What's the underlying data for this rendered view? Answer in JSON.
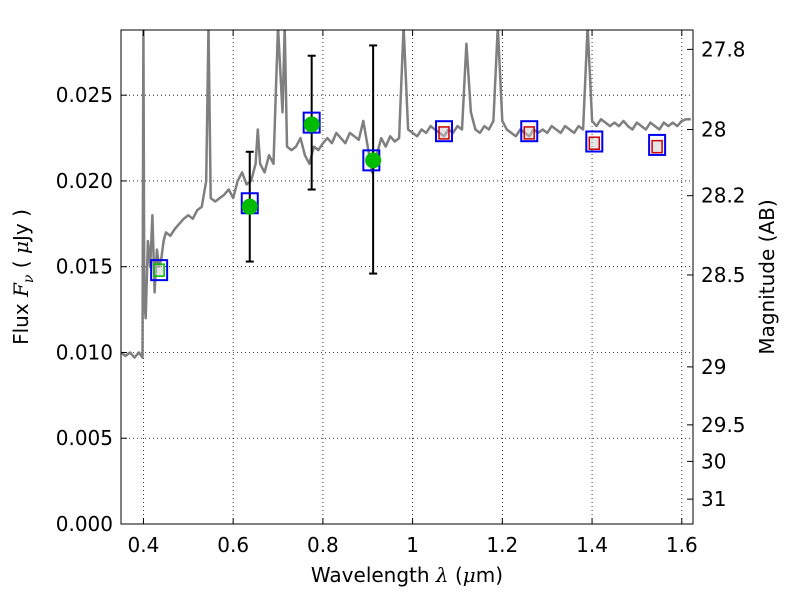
{
  "chart_data": {
    "type": "scatter",
    "title": "",
    "xlabel": {
      "prefix": "Wavelength  ",
      "symbol": "λ",
      "unit_open": " (",
      "unit_mu": "μ",
      "unit_close": "m)"
    },
    "ylabel": {
      "prefix": "Flux  ",
      "symbol": "F",
      "sub": "ν",
      "unit_open": "  ( ",
      "unit_mu": "μ",
      "unit_close": "Jy )"
    },
    "y2label": "Magnitude (AB)",
    "xlim": [
      0.35,
      1.625
    ],
    "ylim": [
      0.0,
      0.0288
    ],
    "grid": true,
    "x_ticks": [
      {
        "value": 0.4,
        "label": "0.4"
      },
      {
        "value": 0.6,
        "label": "0.6"
      },
      {
        "value": 0.8,
        "label": "0.8"
      },
      {
        "value": 1.0,
        "label": "1"
      },
      {
        "value": 1.2,
        "label": "1.2"
      },
      {
        "value": 1.4,
        "label": "1.4"
      },
      {
        "value": 1.6,
        "label": "1.6"
      }
    ],
    "y_ticks": [
      {
        "value": 0.0,
        "label": "0.000"
      },
      {
        "value": 0.005,
        "label": "0.005"
      },
      {
        "value": 0.01,
        "label": "0.010"
      },
      {
        "value": 0.015,
        "label": "0.015"
      },
      {
        "value": 0.02,
        "label": "0.020"
      },
      {
        "value": 0.025,
        "label": "0.025"
      }
    ],
    "mag_ticks": [
      {
        "label": "27.8",
        "flux": 0.02767
      },
      {
        "label": "28",
        "flux": 0.023
      },
      {
        "label": "28.2",
        "flux": 0.01914
      },
      {
        "label": "28.5",
        "flux": 0.01452
      },
      {
        "label": "29",
        "flux": 0.00916
      },
      {
        "label": "29.5",
        "flux": 0.00578
      },
      {
        "label": "30",
        "flux": 0.00365
      },
      {
        "label": "31",
        "flux": 0.00145
      }
    ],
    "colors": {
      "spectrum": "#7f7f7f",
      "observed": "#00bb00",
      "model_box": "#0000ee",
      "upper_box": "#cc0000",
      "upper_box_fill": "#aaaaaa",
      "errorbar": "#000000"
    },
    "spectrum": {
      "x": [
        0.35,
        0.36,
        0.37,
        0.38,
        0.39,
        0.398,
        0.4,
        0.402,
        0.405,
        0.41,
        0.415,
        0.42,
        0.425,
        0.43,
        0.435,
        0.44,
        0.445,
        0.45,
        0.46,
        0.47,
        0.48,
        0.49,
        0.5,
        0.51,
        0.52,
        0.53,
        0.54,
        0.545,
        0.55,
        0.56,
        0.57,
        0.58,
        0.59,
        0.6,
        0.61,
        0.62,
        0.63,
        0.64,
        0.65,
        0.655,
        0.66,
        0.67,
        0.68,
        0.69,
        0.7,
        0.71,
        0.715,
        0.72,
        0.73,
        0.74,
        0.75,
        0.76,
        0.77,
        0.78,
        0.79,
        0.8,
        0.81,
        0.82,
        0.83,
        0.84,
        0.85,
        0.86,
        0.87,
        0.88,
        0.89,
        0.9,
        0.91,
        0.92,
        0.93,
        0.94,
        0.95,
        0.96,
        0.97,
        0.98,
        0.99,
        1.0,
        1.01,
        1.02,
        1.03,
        1.04,
        1.05,
        1.06,
        1.07,
        1.08,
        1.09,
        1.1,
        1.11,
        1.12,
        1.13,
        1.14,
        1.15,
        1.16,
        1.17,
        1.18,
        1.19,
        1.2,
        1.21,
        1.22,
        1.23,
        1.24,
        1.25,
        1.26,
        1.27,
        1.28,
        1.29,
        1.3,
        1.31,
        1.32,
        1.33,
        1.34,
        1.35,
        1.36,
        1.37,
        1.38,
        1.39,
        1.4,
        1.41,
        1.42,
        1.43,
        1.44,
        1.45,
        1.46,
        1.47,
        1.48,
        1.49,
        1.5,
        1.51,
        1.52,
        1.53,
        1.54,
        1.55,
        1.56,
        1.57,
        1.58,
        1.59,
        1.6,
        1.61,
        1.62
      ],
      "y": [
        0.01,
        0.0098,
        0.01,
        0.0097,
        0.01,
        0.0097,
        0.029,
        0.013,
        0.012,
        0.0165,
        0.015,
        0.018,
        0.0135,
        0.016,
        0.015,
        0.0155,
        0.0165,
        0.017,
        0.0168,
        0.0172,
        0.0175,
        0.0178,
        0.018,
        0.0178,
        0.0183,
        0.0185,
        0.02,
        0.029,
        0.019,
        0.0188,
        0.019,
        0.0192,
        0.0195,
        0.019,
        0.02,
        0.0205,
        0.0198,
        0.02,
        0.021,
        0.023,
        0.021,
        0.0205,
        0.0215,
        0.021,
        0.029,
        0.024,
        0.029,
        0.022,
        0.0218,
        0.022,
        0.0225,
        0.0215,
        0.021,
        0.022,
        0.0218,
        0.0222,
        0.0225,
        0.0222,
        0.0228,
        0.0225,
        0.0222,
        0.0228,
        0.0226,
        0.0224,
        0.0235,
        0.022,
        0.0205,
        0.0215,
        0.0225,
        0.022,
        0.0226,
        0.0223,
        0.0225,
        0.029,
        0.023,
        0.0228,
        0.0226,
        0.023,
        0.0228,
        0.0232,
        0.023,
        0.0228,
        0.0226,
        0.023,
        0.0228,
        0.0232,
        0.023,
        0.028,
        0.024,
        0.023,
        0.0228,
        0.0232,
        0.023,
        0.0235,
        0.029,
        0.0235,
        0.023,
        0.0228,
        0.0226,
        0.023,
        0.0228,
        0.0226,
        0.023,
        0.0228,
        0.023,
        0.0228,
        0.0232,
        0.023,
        0.0228,
        0.0232,
        0.023,
        0.0228,
        0.0232,
        0.023,
        0.029,
        0.0235,
        0.0232,
        0.0236,
        0.0234,
        0.0232,
        0.0234,
        0.0232,
        0.0235,
        0.0232,
        0.023,
        0.0234,
        0.0232,
        0.023,
        0.0234,
        0.0232,
        0.023,
        0.0234,
        0.0232,
        0.0234,
        0.0232,
        0.0235,
        0.0236,
        0.0236
      ]
    },
    "model_points": [
      {
        "x": 0.435,
        "y": 0.0148
      },
      {
        "x": 0.637,
        "y": 0.0187
      },
      {
        "x": 0.775,
        "y": 0.0234
      },
      {
        "x": 0.908,
        "y": 0.0212
      },
      {
        "x": 1.07,
        "y": 0.0229
      },
      {
        "x": 1.26,
        "y": 0.0229
      },
      {
        "x": 1.405,
        "y": 0.0223
      },
      {
        "x": 1.545,
        "y": 0.0221
      }
    ],
    "observed_points": [
      {
        "x": 0.637,
        "y": 0.0185,
        "yerr_low": 0.0153,
        "yerr_high": 0.0217
      },
      {
        "x": 0.775,
        "y": 0.0233,
        "yerr_low": 0.0195,
        "yerr_high": 0.0273
      },
      {
        "x": 0.912,
        "y": 0.0212,
        "yerr_low": 0.0146,
        "yerr_high": 0.0279
      }
    ],
    "inner_markers": [
      {
        "x": 0.435,
        "y": 0.0148,
        "color": "#00bb00"
      },
      {
        "x": 1.07,
        "y": 0.0228,
        "color": "#cc0000"
      },
      {
        "x": 1.26,
        "y": 0.0228,
        "color": "#cc0000"
      },
      {
        "x": 1.405,
        "y": 0.0222,
        "color": "#cc0000"
      },
      {
        "x": 1.545,
        "y": 0.022,
        "color": "#cc0000"
      }
    ]
  }
}
